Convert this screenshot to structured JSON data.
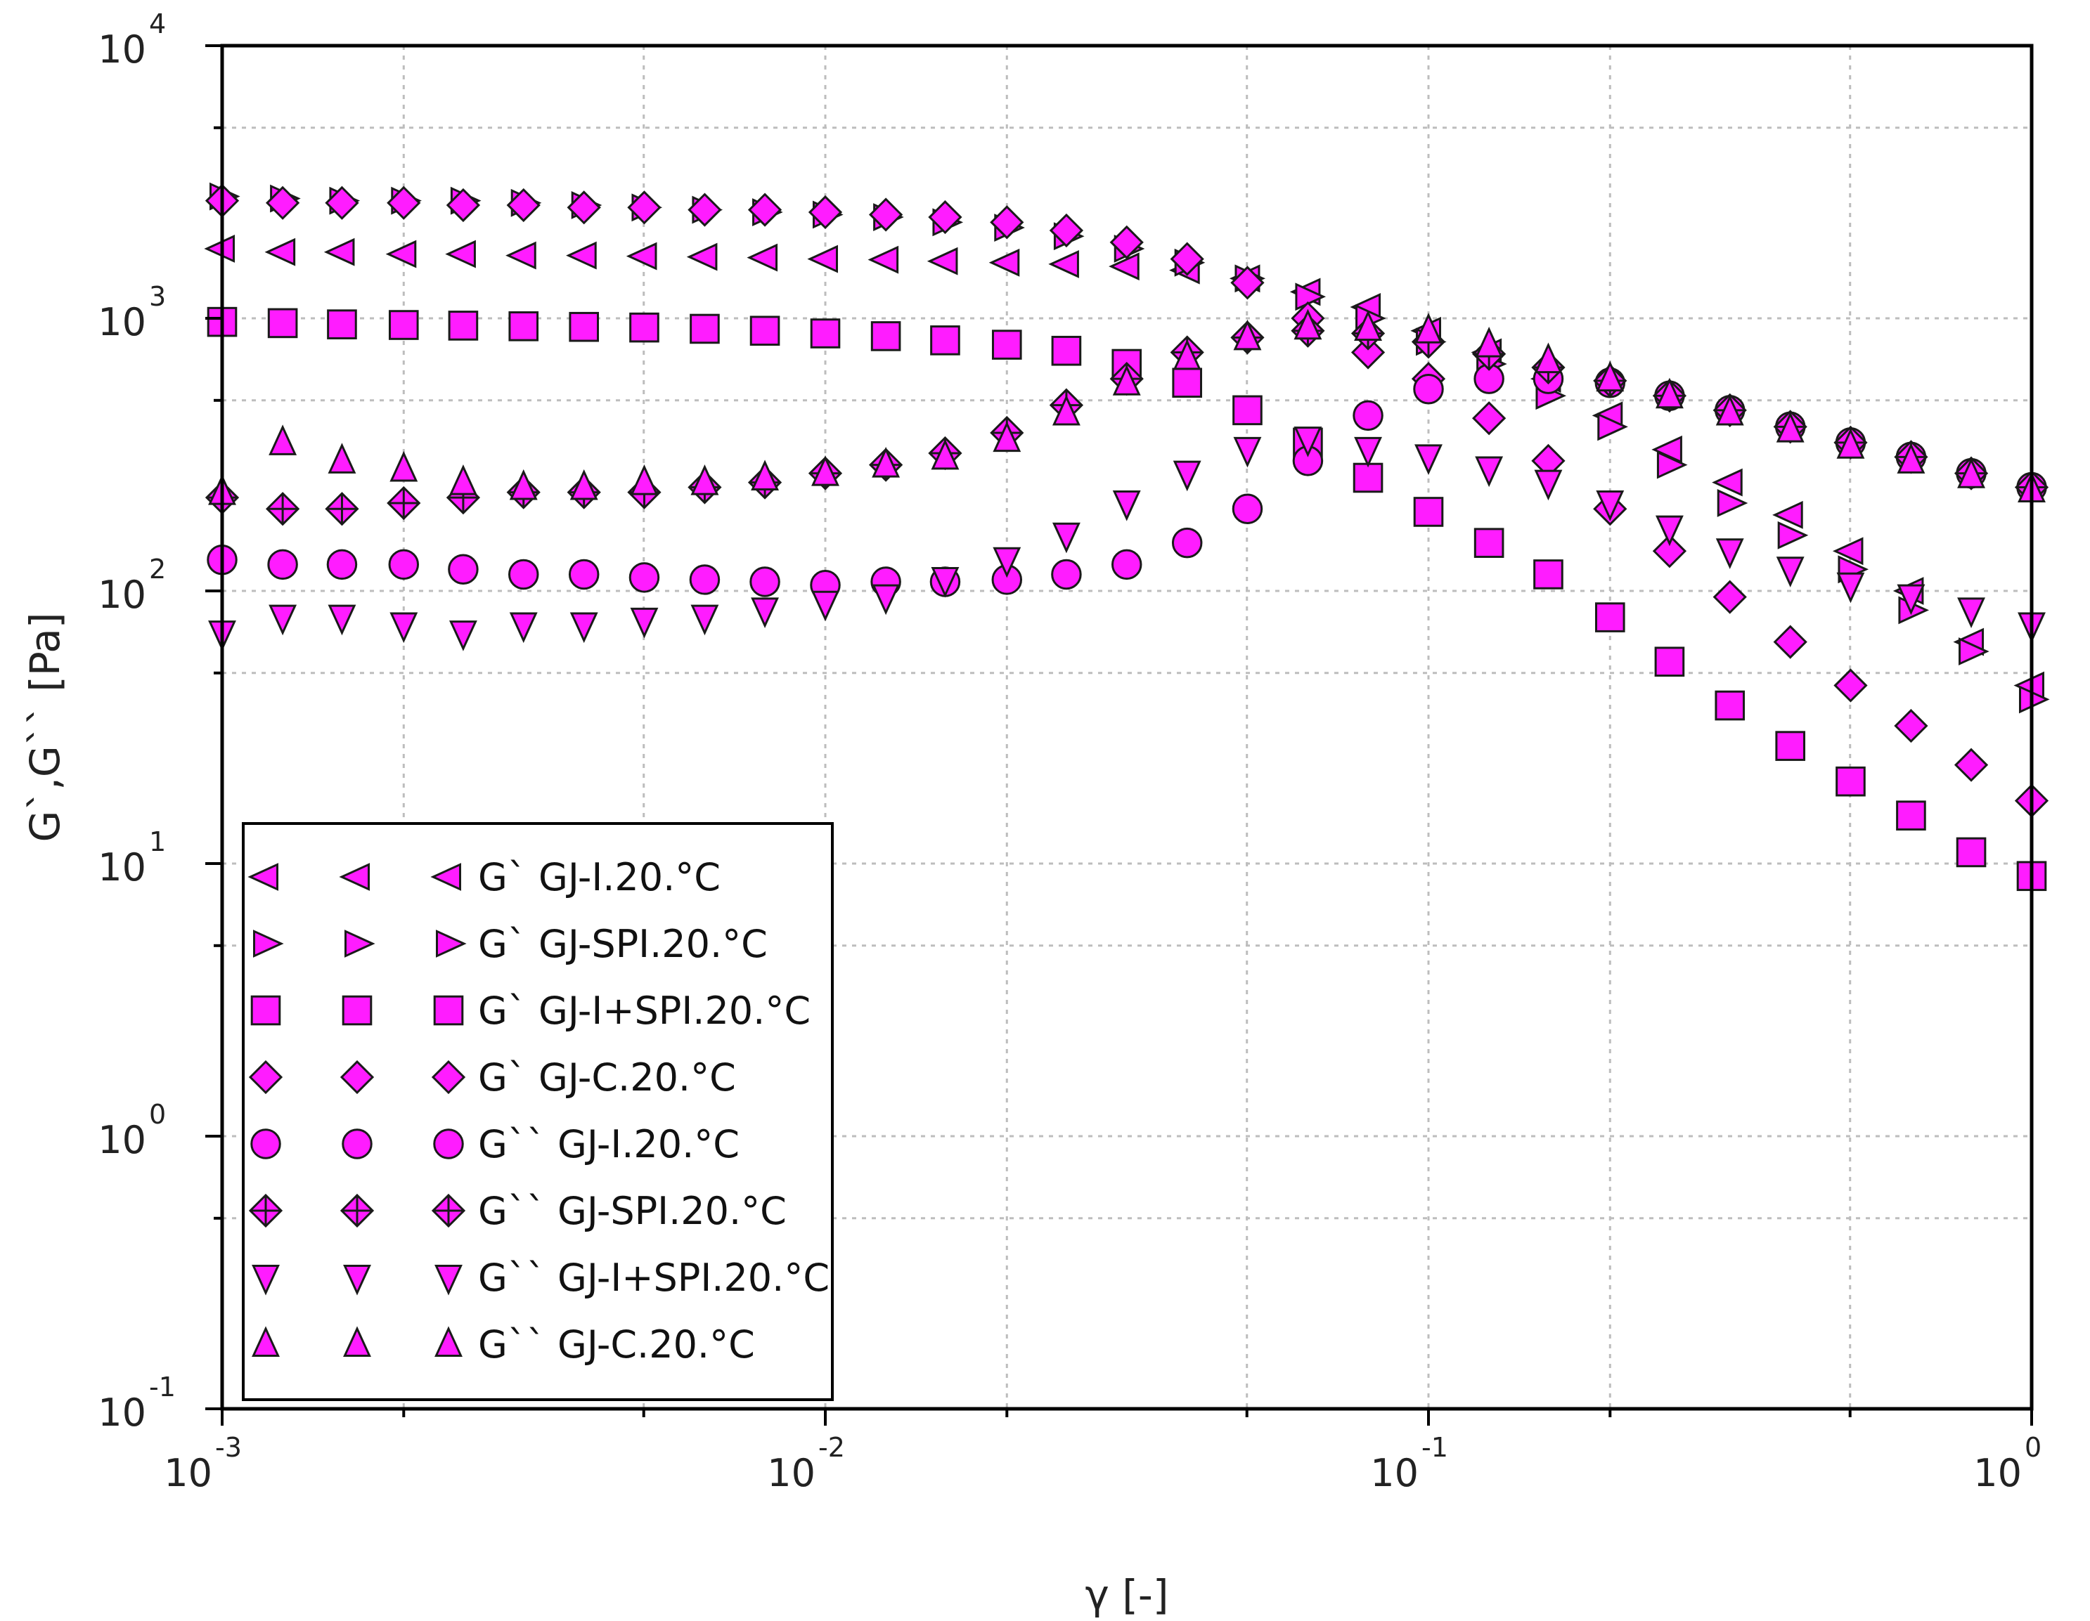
{
  "colors": {
    "marker_fill": "#ff1cff",
    "marker_stroke": "#1a1a1a",
    "grid": "#bdbdbd",
    "axis": "#000000",
    "background": "#ffffff"
  },
  "chart_data": {
    "type": "scatter",
    "title": "",
    "xlabel": "γ [-]",
    "ylabel": "G`,G`` [Pa]",
    "xscale": "log",
    "yscale": "log",
    "xlim": [
      0.001,
      1
    ],
    "ylim": [
      0.1,
      10000
    ],
    "grid": true,
    "legend_position": "bottom-left",
    "x_ticks": [
      {
        "base": "10",
        "exp": "-3",
        "value": 0.001
      },
      {
        "base": "10",
        "exp": "-2",
        "value": 0.01
      },
      {
        "base": "10",
        "exp": "-1",
        "value": 0.1
      },
      {
        "base": "10",
        "exp": "0",
        "value": 1
      }
    ],
    "y_ticks": [
      {
        "base": "10",
        "exp": "-1",
        "value": 0.1
      },
      {
        "base": "10",
        "exp": "0",
        "value": 1
      },
      {
        "base": "10",
        "exp": "1",
        "value": 10
      },
      {
        "base": "10",
        "exp": "2",
        "value": 100
      },
      {
        "base": "10",
        "exp": "3",
        "value": 1000
      },
      {
        "base": "10",
        "exp": "4",
        "value": 10000
      }
    ],
    "x": [
      0.001,
      0.00126,
      0.00158,
      0.002,
      0.00251,
      0.00316,
      0.00398,
      0.00501,
      0.00631,
      0.00794,
      0.01,
      0.0126,
      0.0158,
      0.02,
      0.0251,
      0.0316,
      0.0398,
      0.0501,
      0.0631,
      0.0794,
      0.1,
      0.126,
      0.158,
      0.2,
      0.251,
      0.316,
      0.398,
      0.501,
      0.631,
      0.794,
      1
    ],
    "series": [
      {
        "name": "G` GJ-I.20.°C",
        "marker": "triangle-left",
        "values": [
          1800,
          1750,
          1750,
          1720,
          1720,
          1700,
          1700,
          1690,
          1680,
          1670,
          1650,
          1640,
          1620,
          1600,
          1580,
          1550,
          1500,
          1400,
          1250,
          1100,
          900,
          750,
          600,
          440,
          330,
          250,
          190,
          140,
          100,
          65,
          45
        ]
      },
      {
        "name": "G` GJ-SPI.20.°C",
        "marker": "triangle-right",
        "values": [
          2800,
          2750,
          2700,
          2700,
          2700,
          2650,
          2600,
          2550,
          2500,
          2450,
          2400,
          2350,
          2250,
          2150,
          2000,
          1800,
          1600,
          1400,
          1200,
          1000,
          820,
          680,
          520,
          400,
          290,
          210,
          160,
          120,
          85,
          60,
          40
        ]
      },
      {
        "name": "G` GJ-I+SPI.20.°C",
        "marker": "square",
        "values": [
          970,
          960,
          950,
          945,
          940,
          935,
          930,
          925,
          915,
          900,
          880,
          860,
          830,
          800,
          760,
          680,
          580,
          460,
          350,
          260,
          195,
          150,
          115,
          80,
          55,
          38,
          27,
          20,
          15,
          11,
          9
        ]
      },
      {
        "name": "G` GJ-C.20.°C",
        "marker": "diamond",
        "values": [
          2700,
          2650,
          2650,
          2650,
          2600,
          2600,
          2550,
          2550,
          2500,
          2500,
          2450,
          2400,
          2350,
          2250,
          2100,
          1900,
          1650,
          1350,
          1000,
          750,
          600,
          430,
          300,
          200,
          140,
          95,
          65,
          45,
          32,
          23,
          17
        ]
      },
      {
        "name": "G`` GJ-I.20.°C",
        "marker": "circle",
        "values": [
          130,
          125,
          125,
          125,
          120,
          115,
          115,
          112,
          110,
          108,
          105,
          108,
          108,
          110,
          115,
          125,
          150,
          200,
          300,
          440,
          550,
          600,
          600,
          580,
          520,
          460,
          400,
          350,
          310,
          270,
          240
        ]
      },
      {
        "name": "G`` GJ-SPI.20.°C",
        "marker": "crossed-diamond",
        "values": [
          220,
          200,
          200,
          210,
          220,
          230,
          230,
          230,
          240,
          250,
          270,
          290,
          320,
          380,
          480,
          600,
          750,
          850,
          900,
          880,
          820,
          740,
          660,
          590,
          520,
          460,
          400,
          350,
          310,
          270,
          240
        ]
      },
      {
        "name": "G`` GJ-I+SPI.20.°C",
        "marker": "triangle-down",
        "values": [
          70,
          80,
          80,
          75,
          70,
          75,
          75,
          78,
          80,
          85,
          90,
          95,
          110,
          130,
          160,
          210,
          270,
          330,
          360,
          330,
          310,
          280,
          250,
          210,
          170,
          140,
          120,
          105,
          95,
          85,
          75
        ]
      },
      {
        "name": "G`` GJ-C.20.°C",
        "marker": "triangle-up",
        "values": [
          230,
          350,
          300,
          280,
          250,
          240,
          240,
          250,
          250,
          260,
          270,
          290,
          310,
          360,
          450,
          580,
          720,
          850,
          930,
          920,
          900,
          800,
          700,
          600,
          520,
          450,
          390,
          340,
          300,
          265,
          235
        ]
      }
    ]
  }
}
